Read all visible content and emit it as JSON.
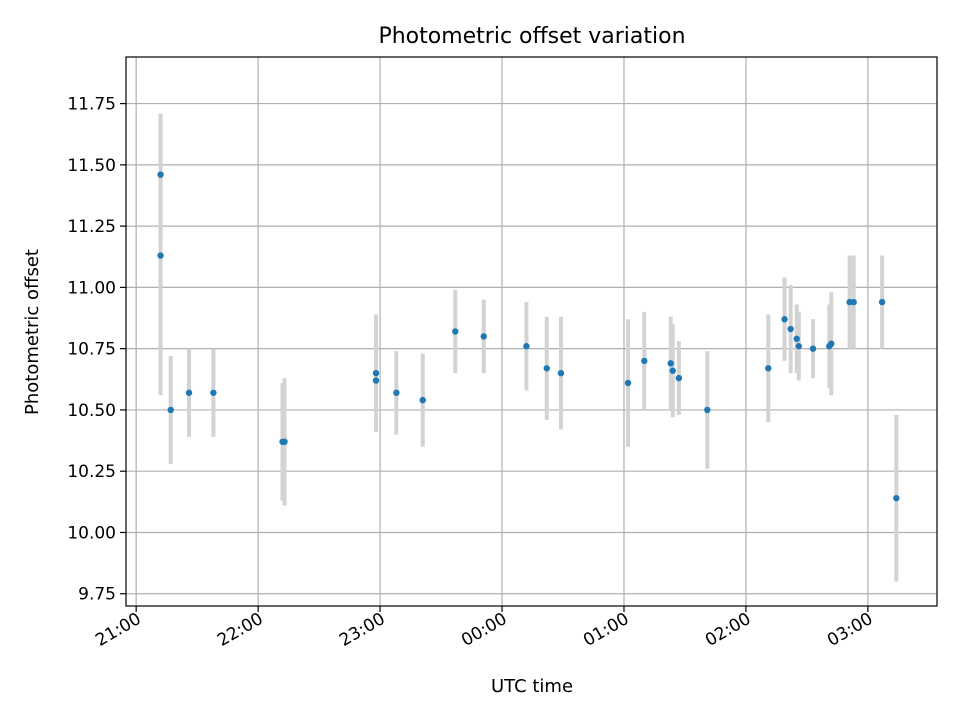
{
  "chart_data": {
    "type": "scatter",
    "title": "Photometric offset variation",
    "xlabel": "UTC time",
    "ylabel": "Photometric offset",
    "grid": true,
    "x_unit": "UTC time (HH:MM)",
    "xlim": [
      "20:55",
      "03:34"
    ],
    "ylim": [
      9.7,
      11.94
    ],
    "x_ticks": [
      "21:00",
      "22:00",
      "23:00",
      "00:00",
      "01:00",
      "02:00",
      "03:00"
    ],
    "y_ticks": [
      "9.75",
      "10.00",
      "10.25",
      "10.50",
      "10.75",
      "11.00",
      "11.25",
      "11.50",
      "11.75"
    ],
    "colors": {
      "point": "#1f77b4",
      "errorbar": "#d3d3d3",
      "grid": "#b0b0b0"
    },
    "points": [
      {
        "t": "21:12",
        "y": 11.46,
        "err": 0.25
      },
      {
        "t": "21:12",
        "y": 11.13,
        "err": 0.57
      },
      {
        "t": "21:17",
        "y": 10.5,
        "err": 0.22
      },
      {
        "t": "21:26",
        "y": 10.57,
        "err": 0.18
      },
      {
        "t": "21:38",
        "y": 10.57,
        "err": 0.18
      },
      {
        "t": "22:12",
        "y": 10.37,
        "err": 0.24
      },
      {
        "t": "22:13",
        "y": 10.37,
        "err": 0.26
      },
      {
        "t": "22:58",
        "y": 10.65,
        "err": 0.24
      },
      {
        "t": "22:58",
        "y": 10.62,
        "err": 0.21
      },
      {
        "t": "23:08",
        "y": 10.57,
        "err": 0.17
      },
      {
        "t": "23:21",
        "y": 10.54,
        "err": 0.19
      },
      {
        "t": "23:37",
        "y": 10.82,
        "err": 0.17
      },
      {
        "t": "23:51",
        "y": 10.8,
        "err": 0.15
      },
      {
        "t": "00:12",
        "y": 10.76,
        "err": 0.18
      },
      {
        "t": "00:22",
        "y": 10.67,
        "err": 0.21
      },
      {
        "t": "00:29",
        "y": 10.65,
        "err": 0.23
      },
      {
        "t": "01:02",
        "y": 10.61,
        "err": 0.26
      },
      {
        "t": "01:10",
        "y": 10.7,
        "err": 0.2
      },
      {
        "t": "01:23",
        "y": 10.69,
        "err": 0.19
      },
      {
        "t": "01:24",
        "y": 10.66,
        "err": 0.19
      },
      {
        "t": "01:27",
        "y": 10.63,
        "err": 0.15
      },
      {
        "t": "01:41",
        "y": 10.5,
        "err": 0.24
      },
      {
        "t": "02:11",
        "y": 10.67,
        "err": 0.22
      },
      {
        "t": "02:19",
        "y": 10.87,
        "err": 0.17
      },
      {
        "t": "02:22",
        "y": 10.83,
        "err": 0.18
      },
      {
        "t": "02:25",
        "y": 10.79,
        "err": 0.14
      },
      {
        "t": "02:26",
        "y": 10.76,
        "err": 0.14
      },
      {
        "t": "02:33",
        "y": 10.75,
        "err": 0.12
      },
      {
        "t": "02:41",
        "y": 10.76,
        "err": 0.17
      },
      {
        "t": "02:42",
        "y": 10.77,
        "err": 0.21
      },
      {
        "t": "02:51",
        "y": 10.94,
        "err": 0.19
      },
      {
        "t": "02:53",
        "y": 10.94,
        "err": 0.19
      },
      {
        "t": "03:07",
        "y": 10.94,
        "err": 0.19
      },
      {
        "t": "03:14",
        "y": 10.14,
        "err": 0.34
      }
    ]
  }
}
